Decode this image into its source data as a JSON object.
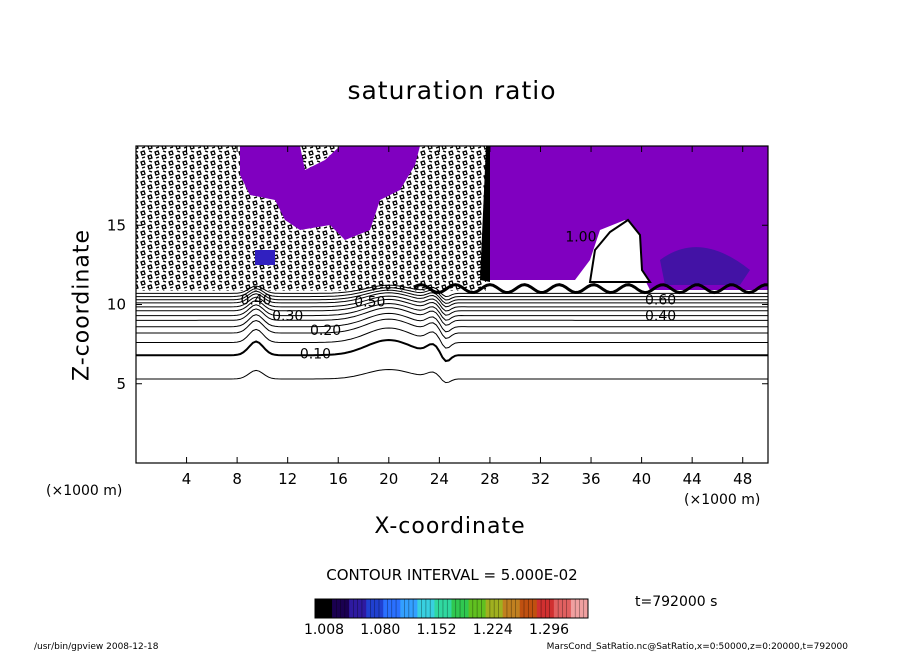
{
  "chart_data": {
    "type": "heatmap",
    "title": "saturation ratio",
    "xlabel": "X-coordinate",
    "ylabel": "Z-coordinate",
    "x_unit": "(×1000 m)",
    "y_unit": "(×1000 m)",
    "xlim": [
      0,
      50
    ],
    "ylim": [
      0,
      20
    ],
    "xticks": [
      "4",
      "8",
      "12",
      "16",
      "20",
      "24",
      "28",
      "32",
      "36",
      "40",
      "44",
      "48"
    ],
    "yticks": [
      "5",
      "10",
      "15"
    ],
    "contour_interval": "CONTOUR INTERVAL = 5.000E-02",
    "contour_labels": [
      {
        "text": "0.10",
        "x": 14.2,
        "z": 6.9
      },
      {
        "text": "0.20",
        "x": 15.0,
        "z": 8.4
      },
      {
        "text": "0.30",
        "x": 12.0,
        "z": 9.3
      },
      {
        "text": "0.40",
        "x": 9.5,
        "z": 10.3
      },
      {
        "text": "0.50",
        "x": 18.5,
        "z": 10.2
      },
      {
        "text": "0.60",
        "x": 41.5,
        "z": 10.3
      },
      {
        "text": "0.40",
        "x": 41.5,
        "z": 9.3
      },
      {
        "text": "1.00",
        "x": 35.2,
        "z": 14.3
      }
    ],
    "colorbar": {
      "ticks": [
        "1.008",
        "1.080",
        "1.152",
        "1.224",
        "1.296"
      ],
      "colors": [
        "#000000",
        "#1a0050",
        "#2e1aa0",
        "#2040d0",
        "#2a70ff",
        "#33a0ff",
        "#38d0e0",
        "#30d8a0",
        "#30c850",
        "#60c020",
        "#a0b020",
        "#c08020",
        "#c05010",
        "#d03030",
        "#e06060",
        "#f0a0a0"
      ]
    },
    "fill_color": "#8000c0",
    "time_label": "t=792000 s"
  },
  "footer": {
    "left": "/usr/bin/gpview   2008-12-18",
    "right": "MarsCond_SatRatio.nc@SatRatio,x=0:50000,z=0:20000,t=792000"
  }
}
